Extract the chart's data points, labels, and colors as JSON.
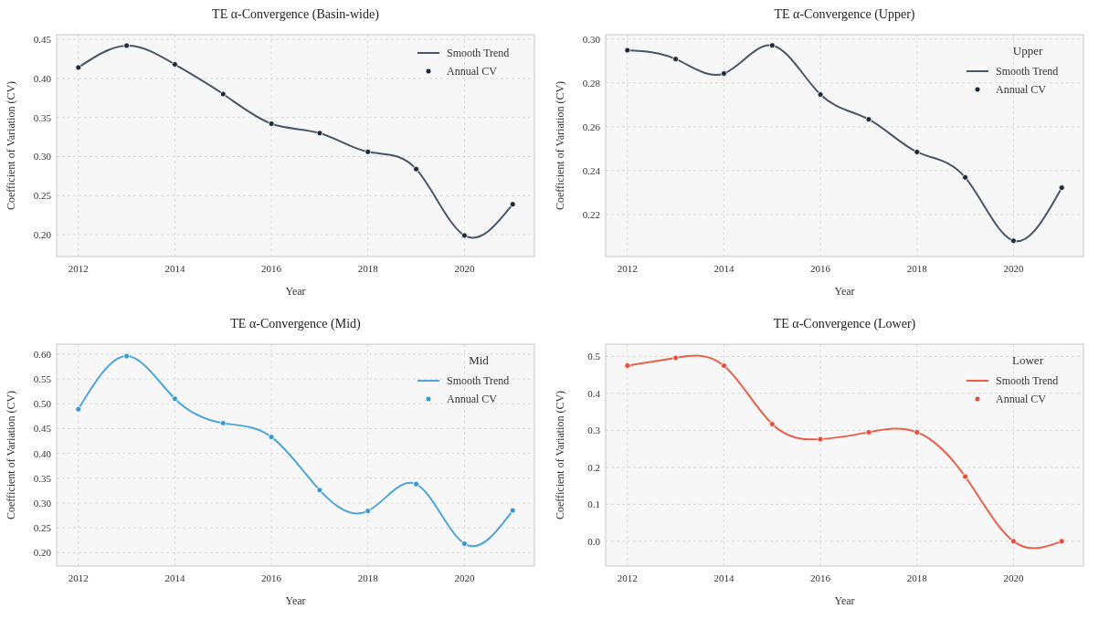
{
  "chart_data": [
    {
      "type": "line",
      "title": "TE α-Convergence (Basin-wide)",
      "xlabel": "Year",
      "ylabel": "Coefficient of Variation (CV)",
      "x": [
        2012,
        2013,
        2014,
        2015,
        2016,
        2017,
        2018,
        2019,
        2020,
        2021
      ],
      "xlim": [
        2011.55,
        2021.45
      ],
      "xticks": [
        2012,
        2014,
        2016,
        2018,
        2020
      ],
      "ylim": [
        0.172,
        0.456
      ],
      "yticks": [
        {
          "value": 0.2,
          "label": "0.20"
        },
        {
          "value": 0.25,
          "label": "0.25"
        },
        {
          "value": 0.3,
          "label": "0.30"
        },
        {
          "value": 0.35,
          "label": "0.35"
        },
        {
          "value": 0.4,
          "label": "0.40"
        },
        {
          "value": 0.45,
          "label": "0.45"
        }
      ],
      "grid": true,
      "legend": "top right",
      "series": [
        {
          "name": "Smooth Trend",
          "color": "#4a5568",
          "values": [
            0.414,
            0.442,
            0.418,
            0.38,
            0.342,
            0.33,
            0.306,
            0.284,
            0.199,
            0.239
          ]
        },
        {
          "name": "Annual CV",
          "type": "scatter",
          "marker": "circle",
          "color": "#1f2937",
          "values": [
            0.414,
            0.442,
            0.418,
            0.38,
            0.342,
            0.33,
            0.306,
            0.284,
            0.199,
            0.239
          ]
        }
      ]
    },
    {
      "type": "line",
      "title": "TE α-Convergence (Upper)",
      "xlabel": "Year",
      "ylabel": "Coefficient of Variation (CV)",
      "legend_title": "Upper",
      "x": [
        2012,
        2013,
        2014,
        2015,
        2016,
        2017,
        2018,
        2019,
        2020,
        2021
      ],
      "xlim": [
        2011.55,
        2021.45
      ],
      "xticks": [
        2012,
        2014,
        2016,
        2018,
        2020
      ],
      "ylim": [
        0.2008,
        0.302
      ],
      "yticks": [
        {
          "value": 0.22,
          "label": "0.22"
        },
        {
          "value": 0.24,
          "label": "0.24"
        },
        {
          "value": 0.26,
          "label": "0.26"
        },
        {
          "value": 0.28,
          "label": "0.28"
        },
        {
          "value": 0.3,
          "label": "0.30"
        }
      ],
      "grid": true,
      "legend": "top right",
      "series": [
        {
          "name": "Smooth Trend",
          "color": "#4a5568",
          "values": [
            0.2949,
            0.2909,
            0.2843,
            0.2971,
            0.2747,
            0.2634,
            0.2485,
            0.2369,
            0.208,
            0.2322
          ]
        },
        {
          "name": "Annual CV",
          "type": "scatter",
          "marker": "circle",
          "color": "#1f2937",
          "values": [
            0.2949,
            0.2909,
            0.2843,
            0.2971,
            0.2747,
            0.2634,
            0.2485,
            0.2369,
            0.208,
            0.2322
          ]
        }
      ]
    },
    {
      "type": "line",
      "title": "TE α-Convergence (Mid)",
      "xlabel": "Year",
      "ylabel": "Coefficient of Variation (CV)",
      "legend_title": "Mid",
      "x": [
        2012,
        2013,
        2014,
        2015,
        2016,
        2017,
        2018,
        2019,
        2020,
        2021
      ],
      "xlim": [
        2011.55,
        2021.45
      ],
      "xticks": [
        2012,
        2014,
        2016,
        2018,
        2020
      ],
      "ylim": [
        0.173,
        0.62
      ],
      "yticks": [
        {
          "value": 0.2,
          "label": "0.20"
        },
        {
          "value": 0.25,
          "label": "0.25"
        },
        {
          "value": 0.3,
          "label": "0.30"
        },
        {
          "value": 0.35,
          "label": "0.35"
        },
        {
          "value": 0.4,
          "label": "0.40"
        },
        {
          "value": 0.45,
          "label": "0.45"
        },
        {
          "value": 0.5,
          "label": "0.50"
        },
        {
          "value": 0.55,
          "label": "0.55"
        },
        {
          "value": 0.6,
          "label": "0.60"
        }
      ],
      "grid": true,
      "legend": "top right",
      "series": [
        {
          "name": "Smooth Trend",
          "color": "#4ea5d9",
          "values": [
            0.489,
            0.596,
            0.51,
            0.461,
            0.433,
            0.326,
            0.284,
            0.338,
            0.218,
            0.285
          ]
        },
        {
          "name": "Annual CV",
          "type": "scatter",
          "marker": "circle",
          "color": "#3b97d3",
          "values": [
            0.489,
            0.596,
            0.51,
            0.461,
            0.433,
            0.326,
            0.284,
            0.338,
            0.218,
            0.285
          ]
        }
      ]
    },
    {
      "type": "line",
      "title": "TE α-Convergence (Lower)",
      "xlabel": "Year",
      "ylabel": "Coefficient of Variation (CV)",
      "legend_title": "Lower",
      "x": [
        2012,
        2013,
        2014,
        2015,
        2016,
        2017,
        2018,
        2019,
        2020,
        2021
      ],
      "xlim": [
        2011.55,
        2021.45
      ],
      "xticks": [
        2012,
        2014,
        2016,
        2018,
        2020
      ],
      "ylim": [
        -0.067,
        0.533
      ],
      "yticks": [
        {
          "value": 0,
          "label": "0.0"
        },
        {
          "value": 0.1,
          "label": "0.1"
        },
        {
          "value": 0.2,
          "label": "0.2"
        },
        {
          "value": 0.3,
          "label": "0.3"
        },
        {
          "value": 0.4,
          "label": "0.4"
        },
        {
          "value": 0.5,
          "label": "0.5"
        }
      ],
      "grid": true,
      "legend": "top right",
      "series": [
        {
          "name": "Smooth Trend",
          "color": "#e8604c",
          "values": [
            0.475,
            0.496,
            0.475,
            0.317,
            0.276,
            0.295,
            0.295,
            0.175,
            0,
            0
          ]
        },
        {
          "name": "Annual CV",
          "type": "scatter",
          "marker": "circle",
          "color": "#e74c3c",
          "values": [
            0.475,
            0.496,
            0.475,
            0.317,
            0.276,
            0.295,
            0.295,
            0.175,
            0,
            0
          ]
        }
      ]
    }
  ]
}
